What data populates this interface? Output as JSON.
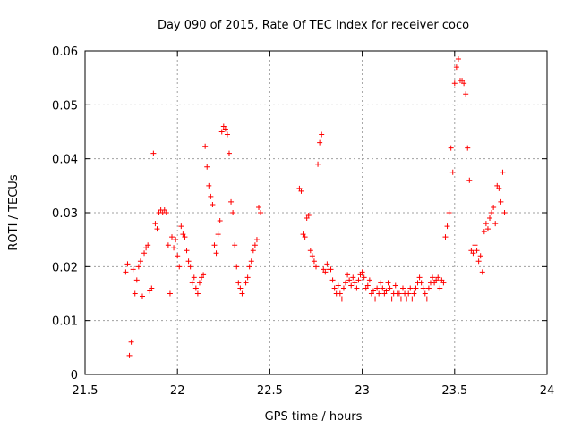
{
  "chart_data": {
    "type": "scatter",
    "title": "Day 090 of 2015, Rate Of TEC Index for receiver coco",
    "xlabel": "GPS time / hours",
    "ylabel": "ROTI / TECUs",
    "xlim": [
      21.5,
      24
    ],
    "ylim": [
      0,
      0.06
    ],
    "xticks": [
      21.5,
      22,
      22.5,
      23,
      23.5,
      24
    ],
    "xtick_labels": [
      "21.5",
      "22",
      "22.5",
      "23",
      "23.5",
      "24"
    ],
    "yticks": [
      0,
      0.01,
      0.02,
      0.03,
      0.04,
      0.05,
      0.06
    ],
    "ytick_labels": [
      "0",
      "0.01",
      "0.02",
      "0.03",
      "0.04",
      "0.05",
      "0.06"
    ],
    "grid": true,
    "marker": "+",
    "marker_color": "#ff0000",
    "series": [
      {
        "name": "ROTI",
        "points": [
          [
            21.72,
            0.019
          ],
          [
            21.73,
            0.0205
          ],
          [
            21.74,
            0.0035
          ],
          [
            21.75,
            0.006
          ],
          [
            21.76,
            0.0195
          ],
          [
            21.77,
            0.015
          ],
          [
            21.78,
            0.0175
          ],
          [
            21.79,
            0.02
          ],
          [
            21.8,
            0.021
          ],
          [
            21.81,
            0.0145
          ],
          [
            21.82,
            0.0225
          ],
          [
            21.83,
            0.0235
          ],
          [
            21.84,
            0.024
          ],
          [
            21.85,
            0.0155
          ],
          [
            21.86,
            0.016
          ],
          [
            21.87,
            0.041
          ],
          [
            21.88,
            0.028
          ],
          [
            21.89,
            0.027
          ],
          [
            21.9,
            0.03
          ],
          [
            21.91,
            0.0305
          ],
          [
            21.92,
            0.03
          ],
          [
            21.93,
            0.0305
          ],
          [
            21.94,
            0.03
          ],
          [
            21.95,
            0.024
          ],
          [
            21.96,
            0.015
          ],
          [
            21.97,
            0.0255
          ],
          [
            21.98,
            0.0235
          ],
          [
            21.99,
            0.025
          ],
          [
            22.0,
            0.022
          ],
          [
            22.01,
            0.02
          ],
          [
            22.02,
            0.0275
          ],
          [
            22.03,
            0.026
          ],
          [
            22.04,
            0.0255
          ],
          [
            22.05,
            0.023
          ],
          [
            22.06,
            0.021
          ],
          [
            22.07,
            0.02
          ],
          [
            22.08,
            0.017
          ],
          [
            22.09,
            0.018
          ],
          [
            22.1,
            0.016
          ],
          [
            22.11,
            0.015
          ],
          [
            22.12,
            0.017
          ],
          [
            22.13,
            0.018
          ],
          [
            22.14,
            0.0185
          ],
          [
            22.15,
            0.0423
          ],
          [
            22.16,
            0.0385
          ],
          [
            22.17,
            0.035
          ],
          [
            22.18,
            0.033
          ],
          [
            22.19,
            0.0315
          ],
          [
            22.2,
            0.024
          ],
          [
            22.21,
            0.0225
          ],
          [
            22.22,
            0.026
          ],
          [
            22.23,
            0.0285
          ],
          [
            22.24,
            0.045
          ],
          [
            22.25,
            0.046
          ],
          [
            22.26,
            0.0455
          ],
          [
            22.27,
            0.0445
          ],
          [
            22.28,
            0.041
          ],
          [
            22.29,
            0.032
          ],
          [
            22.3,
            0.03
          ],
          [
            22.31,
            0.024
          ],
          [
            22.32,
            0.02
          ],
          [
            22.33,
            0.017
          ],
          [
            22.34,
            0.016
          ],
          [
            22.35,
            0.015
          ],
          [
            22.36,
            0.014
          ],
          [
            22.37,
            0.017
          ],
          [
            22.38,
            0.018
          ],
          [
            22.39,
            0.02
          ],
          [
            22.4,
            0.021
          ],
          [
            22.41,
            0.023
          ],
          [
            22.42,
            0.024
          ],
          [
            22.43,
            0.025
          ],
          [
            22.44,
            0.031
          ],
          [
            22.45,
            0.03
          ],
          [
            22.66,
            0.0345
          ],
          [
            22.67,
            0.034
          ],
          [
            22.68,
            0.026
          ],
          [
            22.69,
            0.0255
          ],
          [
            22.7,
            0.029
          ],
          [
            22.71,
            0.0295
          ],
          [
            22.72,
            0.023
          ],
          [
            22.73,
            0.022
          ],
          [
            22.74,
            0.021
          ],
          [
            22.75,
            0.02
          ],
          [
            22.76,
            0.039
          ],
          [
            22.77,
            0.043
          ],
          [
            22.78,
            0.0445
          ],
          [
            22.79,
            0.0195
          ],
          [
            22.8,
            0.019
          ],
          [
            22.81,
            0.0205
          ],
          [
            22.82,
            0.0195
          ],
          [
            22.83,
            0.0195
          ],
          [
            22.84,
            0.0175
          ],
          [
            22.85,
            0.016
          ],
          [
            22.86,
            0.015
          ],
          [
            22.87,
            0.0165
          ],
          [
            22.88,
            0.015
          ],
          [
            22.89,
            0.014
          ],
          [
            22.9,
            0.016
          ],
          [
            22.91,
            0.017
          ],
          [
            22.92,
            0.0185
          ],
          [
            22.93,
            0.0175
          ],
          [
            22.94,
            0.0165
          ],
          [
            22.95,
            0.018
          ],
          [
            22.96,
            0.017
          ],
          [
            22.97,
            0.016
          ],
          [
            22.98,
            0.0175
          ],
          [
            22.99,
            0.0185
          ],
          [
            23.0,
            0.019
          ],
          [
            23.01,
            0.018
          ],
          [
            23.02,
            0.016
          ],
          [
            23.03,
            0.0165
          ],
          [
            23.04,
            0.0175
          ],
          [
            23.05,
            0.015
          ],
          [
            23.06,
            0.0155
          ],
          [
            23.07,
            0.014
          ],
          [
            23.08,
            0.016
          ],
          [
            23.09,
            0.015
          ],
          [
            23.1,
            0.017
          ],
          [
            23.11,
            0.016
          ],
          [
            23.12,
            0.015
          ],
          [
            23.13,
            0.0155
          ],
          [
            23.14,
            0.017
          ],
          [
            23.15,
            0.016
          ],
          [
            23.16,
            0.014
          ],
          [
            23.17,
            0.015
          ],
          [
            23.18,
            0.0165
          ],
          [
            23.19,
            0.015
          ],
          [
            23.2,
            0.015
          ],
          [
            23.21,
            0.014
          ],
          [
            23.22,
            0.016
          ],
          [
            23.23,
            0.015
          ],
          [
            23.24,
            0.014
          ],
          [
            23.25,
            0.015
          ],
          [
            23.26,
            0.016
          ],
          [
            23.27,
            0.014
          ],
          [
            23.28,
            0.015
          ],
          [
            23.29,
            0.016
          ],
          [
            23.3,
            0.017
          ],
          [
            23.31,
            0.018
          ],
          [
            23.32,
            0.017
          ],
          [
            23.33,
            0.016
          ],
          [
            23.34,
            0.015
          ],
          [
            23.35,
            0.014
          ],
          [
            23.36,
            0.016
          ],
          [
            23.37,
            0.017
          ],
          [
            23.38,
            0.018
          ],
          [
            23.39,
            0.017
          ],
          [
            23.4,
            0.0175
          ],
          [
            23.41,
            0.018
          ],
          [
            23.42,
            0.016
          ],
          [
            23.43,
            0.0175
          ],
          [
            23.44,
            0.017
          ],
          [
            23.45,
            0.0255
          ],
          [
            23.46,
            0.0275
          ],
          [
            23.47,
            0.03
          ],
          [
            23.48,
            0.042
          ],
          [
            23.49,
            0.0375
          ],
          [
            23.5,
            0.054
          ],
          [
            23.51,
            0.057
          ],
          [
            23.52,
            0.0585
          ],
          [
            23.53,
            0.0545
          ],
          [
            23.54,
            0.0545
          ],
          [
            23.55,
            0.054
          ],
          [
            23.56,
            0.052
          ],
          [
            23.57,
            0.042
          ],
          [
            23.58,
            0.036
          ],
          [
            23.59,
            0.023
          ],
          [
            23.6,
            0.0225
          ],
          [
            23.61,
            0.024
          ],
          [
            23.62,
            0.023
          ],
          [
            23.63,
            0.021
          ],
          [
            23.64,
            0.022
          ],
          [
            23.65,
            0.019
          ],
          [
            23.66,
            0.0265
          ],
          [
            23.67,
            0.028
          ],
          [
            23.68,
            0.027
          ],
          [
            23.69,
            0.029
          ],
          [
            23.7,
            0.03
          ],
          [
            23.71,
            0.031
          ],
          [
            23.72,
            0.028
          ],
          [
            23.73,
            0.035
          ],
          [
            23.74,
            0.0345
          ],
          [
            23.75,
            0.032
          ],
          [
            23.76,
            0.0375
          ],
          [
            23.77,
            0.03
          ]
        ]
      }
    ]
  }
}
